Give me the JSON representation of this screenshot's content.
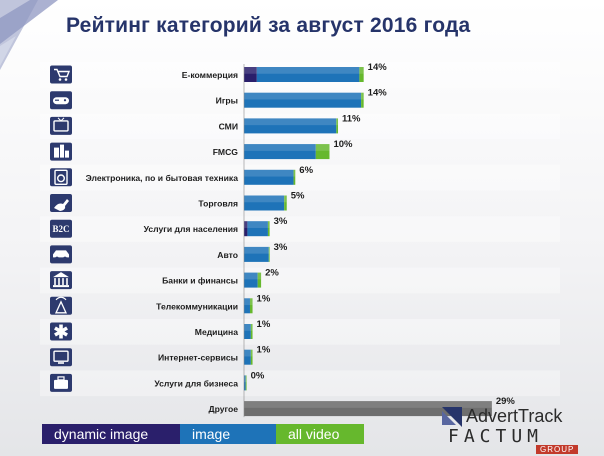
{
  "header": {
    "title": "Рейтинг категорий за август 2016 года"
  },
  "colors": {
    "title": "#26346a",
    "dynamic_image": "#2a1f6b",
    "image": "#1e73b8",
    "all_video": "#66b82d",
    "other": "#6e6e6e",
    "icon_bg": "#2d3a6e"
  },
  "chart_data": {
    "type": "bar",
    "orientation": "horizontal",
    "stacked": true,
    "title": "Рейтинг категорий за август 2016 года",
    "categories": [
      "Е-коммерция",
      "Игры",
      "СМИ",
      "FMCG",
      "Электроника, по и бытовая техника",
      "Торговля",
      "Услуги для населения",
      "Авто",
      "Банки и финансы",
      "Телекоммуникации",
      "Медицина",
      "Интернет-сервисы",
      "Услуги для бизнеса",
      "Другое"
    ],
    "icons": [
      "cart-icon",
      "gamepad-icon",
      "tv-icon",
      "fmcg-products-icon",
      "washing-machine-icon",
      "trading-hand-icon",
      "b2c-icon",
      "car-icon",
      "bank-icon",
      "antenna-icon",
      "medical-star-icon",
      "monitor-icon",
      "briefcase-icon",
      "none"
    ],
    "labels": [
      "14%",
      "14%",
      "11%",
      "10%",
      "6%",
      "5%",
      "3%",
      "3%",
      "2%",
      "1%",
      "1%",
      "1%",
      "0%",
      "29%"
    ],
    "series": [
      {
        "name": "dynamic image",
        "values": [
          1.5,
          0,
          0,
          0,
          0,
          0,
          0.4,
          0,
          0,
          0,
          0,
          0,
          0,
          0
        ]
      },
      {
        "name": "image",
        "values": [
          12.0,
          13.7,
          10.8,
          8.4,
          5.8,
          4.7,
          2.4,
          2.9,
          1.6,
          0.7,
          0.8,
          0.8,
          0.2,
          0
        ]
      },
      {
        "name": "all video",
        "values": [
          0.5,
          0.3,
          0.2,
          1.6,
          0.2,
          0.3,
          0.2,
          0.1,
          0.4,
          0.3,
          0.2,
          0.2,
          0.1,
          0
        ]
      },
      {
        "name": "other",
        "values": [
          0,
          0,
          0,
          0,
          0,
          0,
          0,
          0,
          0,
          0,
          0,
          0,
          0,
          29
        ]
      }
    ],
    "xlim": [
      0,
      29.6
    ],
    "legend": {
      "placement": "bottom-left",
      "entries": [
        "dynamic image",
        "image",
        "all video"
      ]
    }
  },
  "legend": {
    "dynamic_image": "dynamic image",
    "image": "image",
    "all_video": "all video"
  },
  "logo": {
    "advert": "AdvertTrack",
    "factum": "FACTUM",
    "group": "GROUP"
  }
}
